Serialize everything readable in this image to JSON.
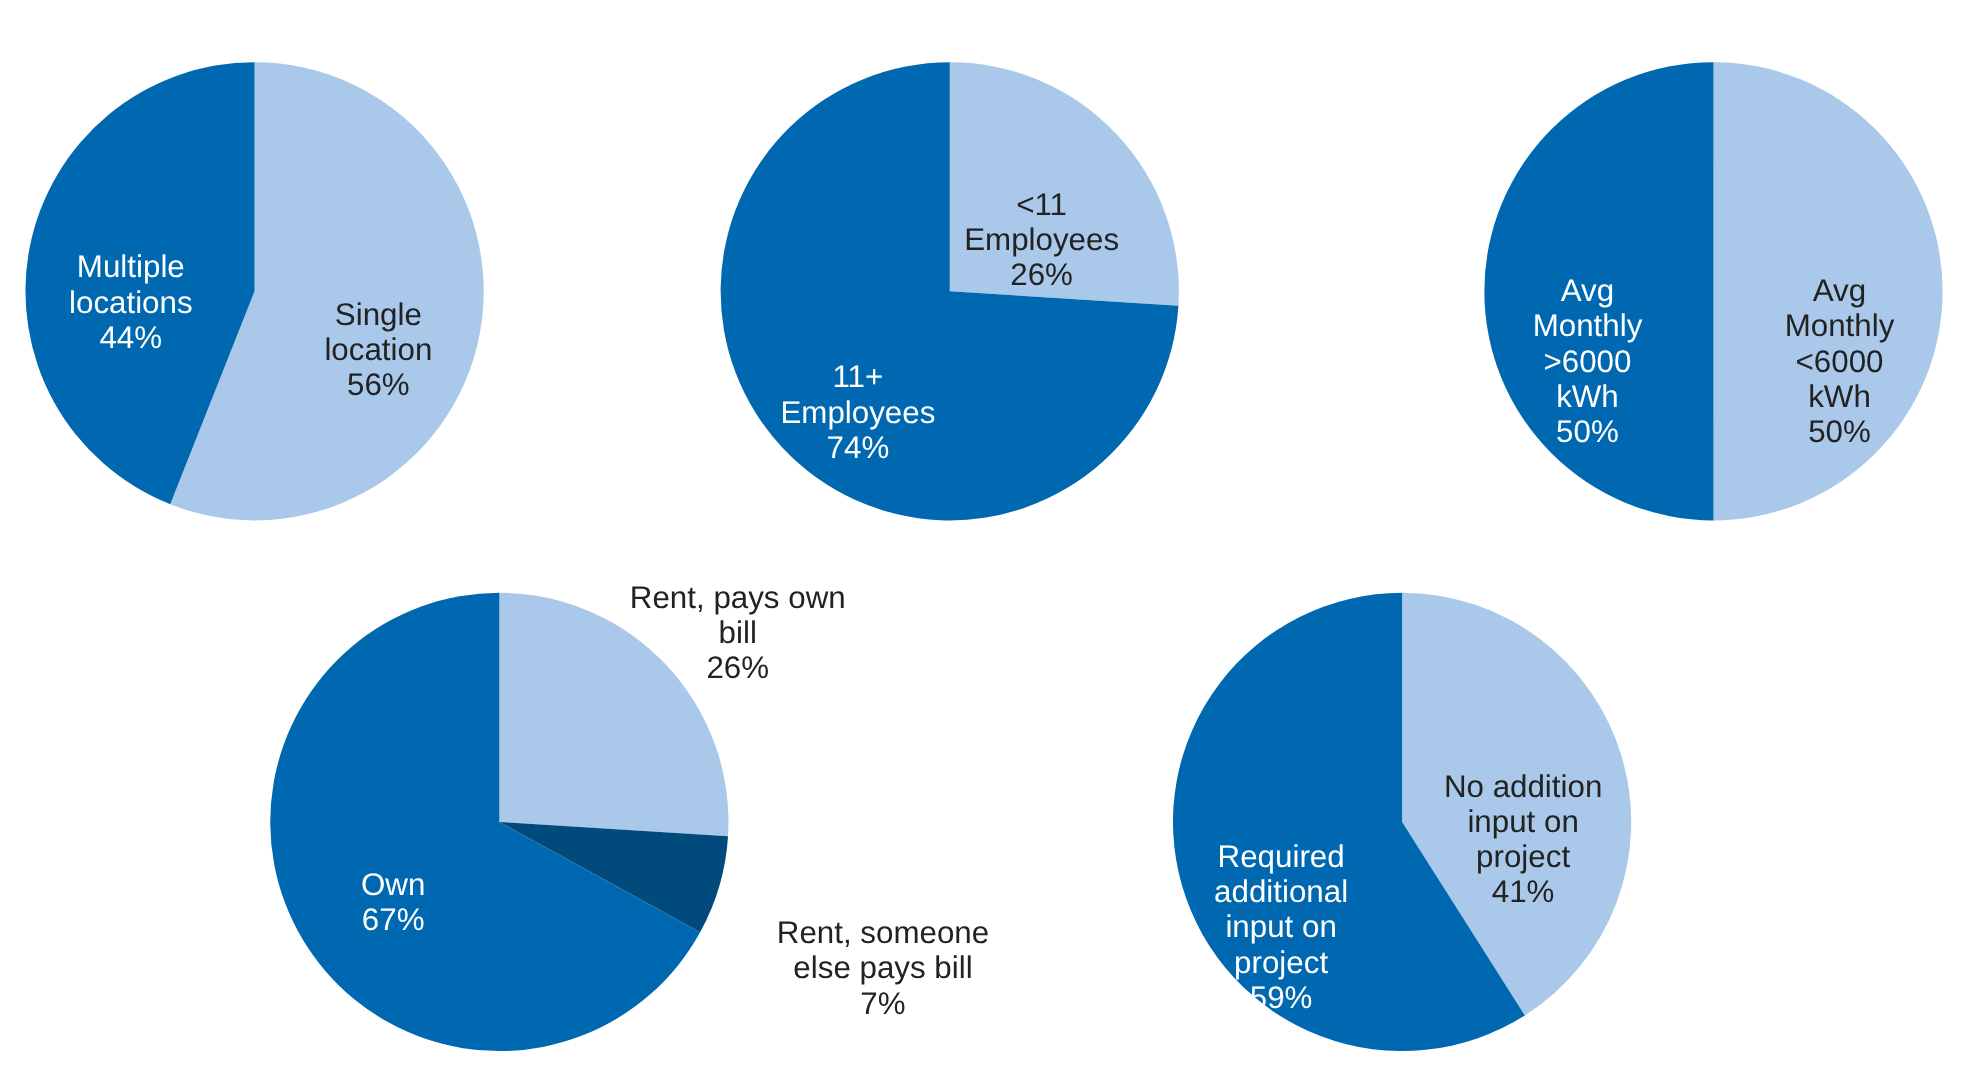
{
  "chart_data": [
    {
      "type": "pie",
      "categories": [
        "Single\nlocation",
        "Multiple\nlocations"
      ],
      "values": [
        56,
        44
      ],
      "colors": [
        "#a9c8ea",
        "#0068b0"
      ],
      "value_labels": [
        "56%",
        "44%"
      ]
    },
    {
      "type": "pie",
      "categories": [
        "<11\nEmployees",
        "11+\nEmployees"
      ],
      "values": [
        26,
        74
      ],
      "colors": [
        "#a9c8ea",
        "#0068b0"
      ],
      "value_labels": [
        "26%",
        "74%"
      ]
    },
    {
      "type": "pie",
      "categories": [
        "Avg\nMonthly\n<6000\nkWh",
        "Avg\nMonthly\n>6000\nkWh"
      ],
      "values": [
        50,
        50
      ],
      "colors": [
        "#a9c8ea",
        "#0068b0"
      ],
      "value_labels": [
        "50%",
        "50%"
      ]
    },
    {
      "type": "pie",
      "categories": [
        "Rent, pays own\nbill",
        "Rent, someone\nelse pays bill",
        "Own"
      ],
      "values": [
        26,
        7,
        67
      ],
      "colors": [
        "#a9c8ea",
        "#004a7c",
        "#0068b0"
      ],
      "value_labels": [
        "26%",
        "7%",
        "67%"
      ]
    },
    {
      "type": "pie",
      "categories": [
        "No addition\ninput on\nproject",
        "Required\nadditional\ninput on\nproject"
      ],
      "values": [
        41,
        59
      ],
      "colors": [
        "#a9c8ea",
        "#0068b0"
      ],
      "value_labels": [
        "41%",
        "59%"
      ]
    }
  ]
}
